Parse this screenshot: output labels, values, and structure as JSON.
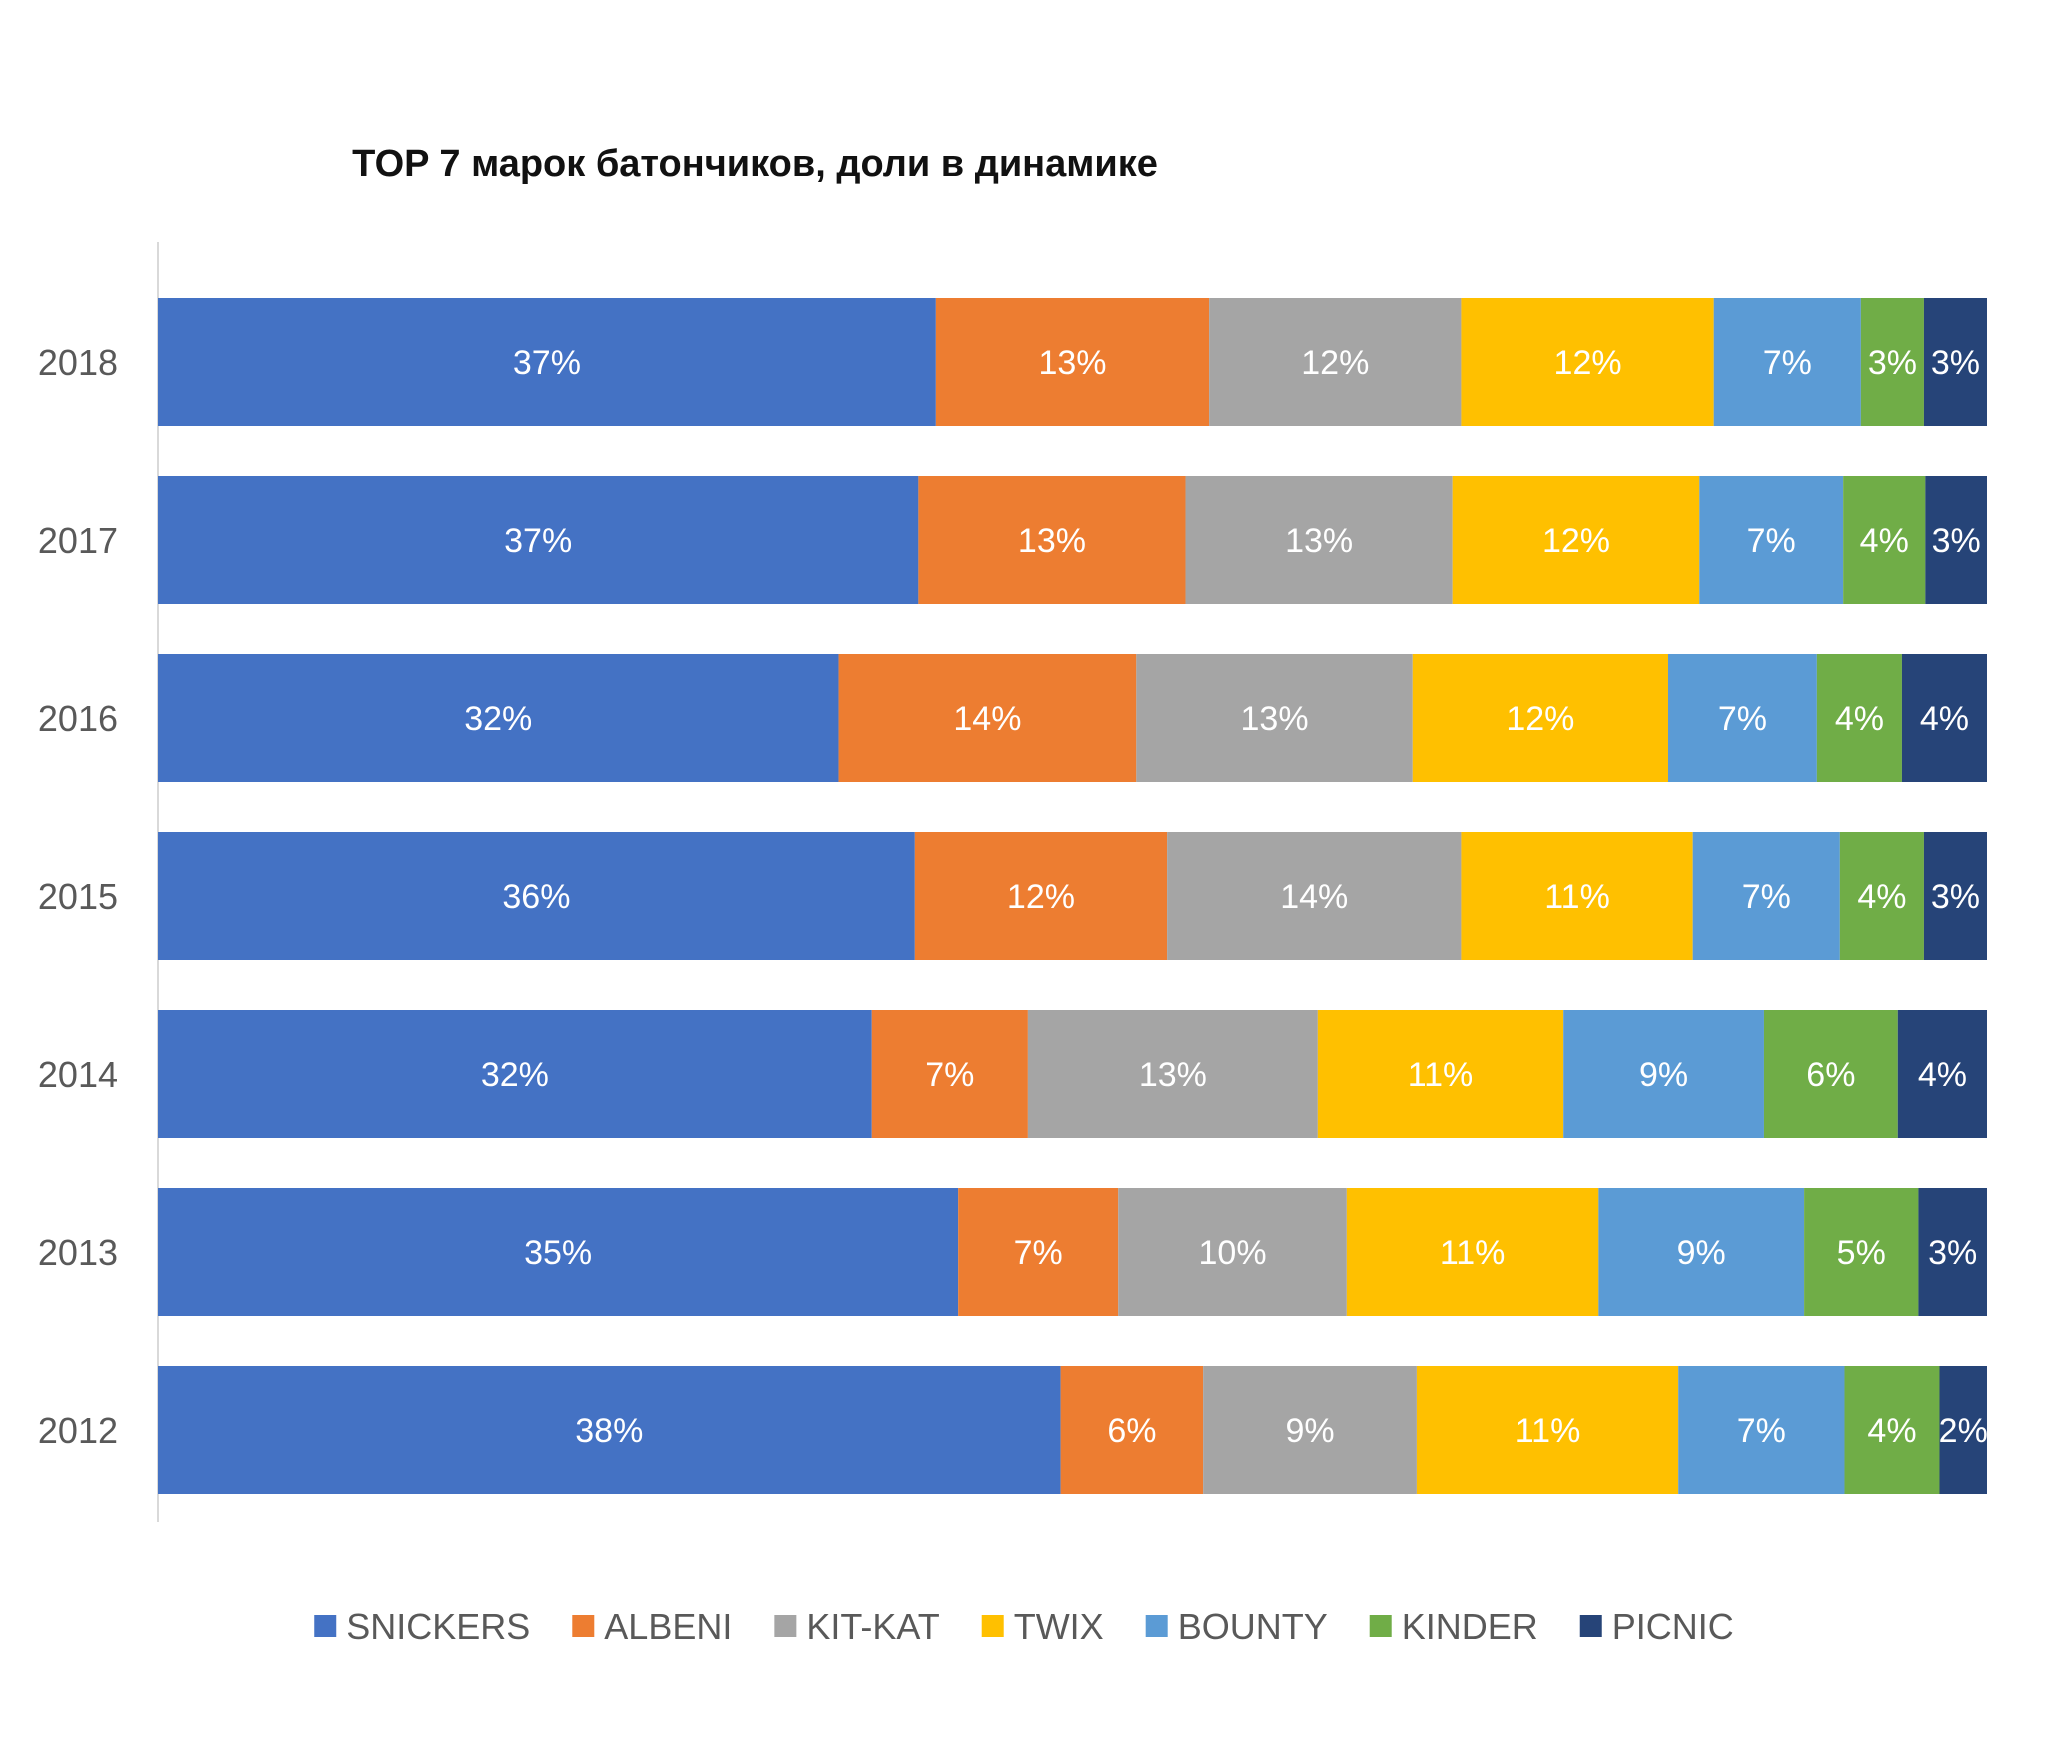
{
  "chart_data": {
    "type": "bar",
    "orientation": "horizontal",
    "stacked": "percent",
    "title": "TOP 7 марок батончиков, доли в динамике",
    "xlabel": "",
    "ylabel": "",
    "categories": [
      "2018",
      "2017",
      "2016",
      "2015",
      "2014",
      "2013",
      "2012"
    ],
    "series": [
      {
        "name": "SNICKERS",
        "color": "#4472C4",
        "values": [
          37,
          37,
          32,
          36,
          32,
          35,
          38
        ],
        "labels": [
          "37%",
          "37%",
          "32%",
          "36%",
          "32%",
          "35%",
          "38%"
        ]
      },
      {
        "name": "ALBENI",
        "color": "#ED7D31",
        "values": [
          13,
          13,
          14,
          12,
          7,
          7,
          6
        ],
        "labels": [
          "13%",
          "13%",
          "14%",
          "12%",
          "7%",
          "7%",
          "6%"
        ]
      },
      {
        "name": "KIT-KAT",
        "color": "#A5A5A5",
        "values": [
          12,
          13,
          13,
          14,
          13,
          10,
          9
        ],
        "labels": [
          "12%",
          "13%",
          "13%",
          "14%",
          "13%",
          "10%",
          "9%"
        ]
      },
      {
        "name": "TWIX",
        "color": "#FFC000",
        "values": [
          12,
          12,
          12,
          11,
          11,
          11,
          11
        ],
        "labels": [
          "12%",
          "12%",
          "12%",
          "11%",
          "11%",
          "11%",
          "11%"
        ]
      },
      {
        "name": "BOUNTY",
        "color": "#5B9BD5",
        "values": [
          7,
          7,
          7,
          7,
          9,
          9,
          7
        ],
        "labels": [
          "7%",
          "7%",
          "7%",
          "7%",
          "9%",
          "9%",
          "7%"
        ]
      },
      {
        "name": "KINDER",
        "color": "#70AD47",
        "values": [
          3,
          4,
          4,
          4,
          6,
          5,
          4
        ],
        "labels": [
          "3%",
          "4%",
          "4%",
          "4%",
          "6%",
          "5%",
          "4%"
        ]
      },
      {
        "name": "PICNIC",
        "color": "#264478",
        "values": [
          3,
          3,
          4,
          3,
          4,
          3,
          2
        ],
        "labels": [
          "3%",
          "3%",
          "4%",
          "3%",
          "4%",
          "3%",
          "2%"
        ]
      }
    ],
    "legend_position": "bottom",
    "grid": false
  }
}
